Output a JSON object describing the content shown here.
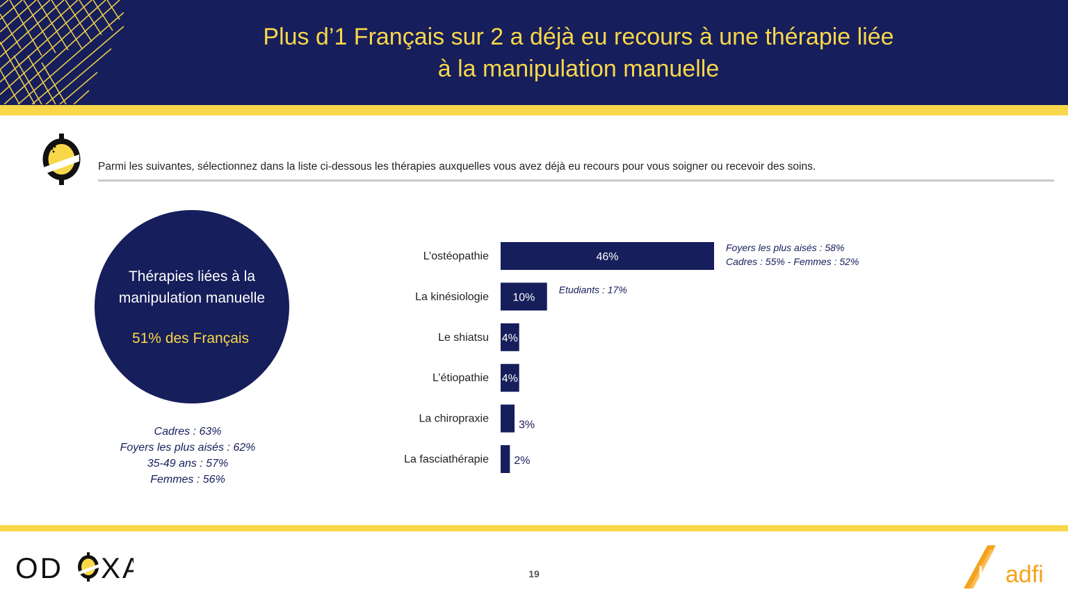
{
  "title": {
    "line1": "Plus d’1 Français sur 2 a déjà eu recours à une thérapie liée",
    "line2": "à la manipulation manuelle"
  },
  "question": "Parmi les suivantes, sélectionnez dans la liste ci-dessous les thérapies auxquelles vous avez déjà eu recours pour vous soigner ou recevoir des soins.",
  "summary": {
    "label_line1": "Thérapies liées à la",
    "label_line2": "manipulation manuelle",
    "value": "51% des Français",
    "subgroups": [
      "Cadres : 63%",
      "Foyers les plus aisés : 62%",
      "35-49 ans : 57%",
      "Femmes : 56%"
    ]
  },
  "chart_data": {
    "type": "bar",
    "orientation": "horizontal",
    "categories": [
      "L’ostéopathie",
      "La kinésiologie",
      "Le shiatsu",
      "L’étiopathie",
      "La chiropraxie",
      "La fasciathérapie"
    ],
    "values": [
      46,
      10,
      4,
      4,
      3,
      2
    ],
    "value_labels": [
      "46%",
      "10%",
      "4%",
      "4%",
      "3%",
      "2%"
    ],
    "annotations": [
      [
        "Foyers les plus aisés : 58%",
        "Cadres : 55% - Femmes : 52%"
      ],
      [
        "Etudiants : 17%"
      ],
      [],
      [],
      [],
      []
    ],
    "xlim": [
      0,
      100
    ],
    "colors": {
      "bar": "#161e5b",
      "accent": "#f9d74a"
    }
  },
  "footer": {
    "brand_left": "ODOXA",
    "page": "19",
    "brand_right_1": "Un",
    "brand_right_2": "adfi"
  },
  "icons": {
    "header_pattern": "chevron-pattern",
    "question_icon": "odoxa-question-icon"
  }
}
